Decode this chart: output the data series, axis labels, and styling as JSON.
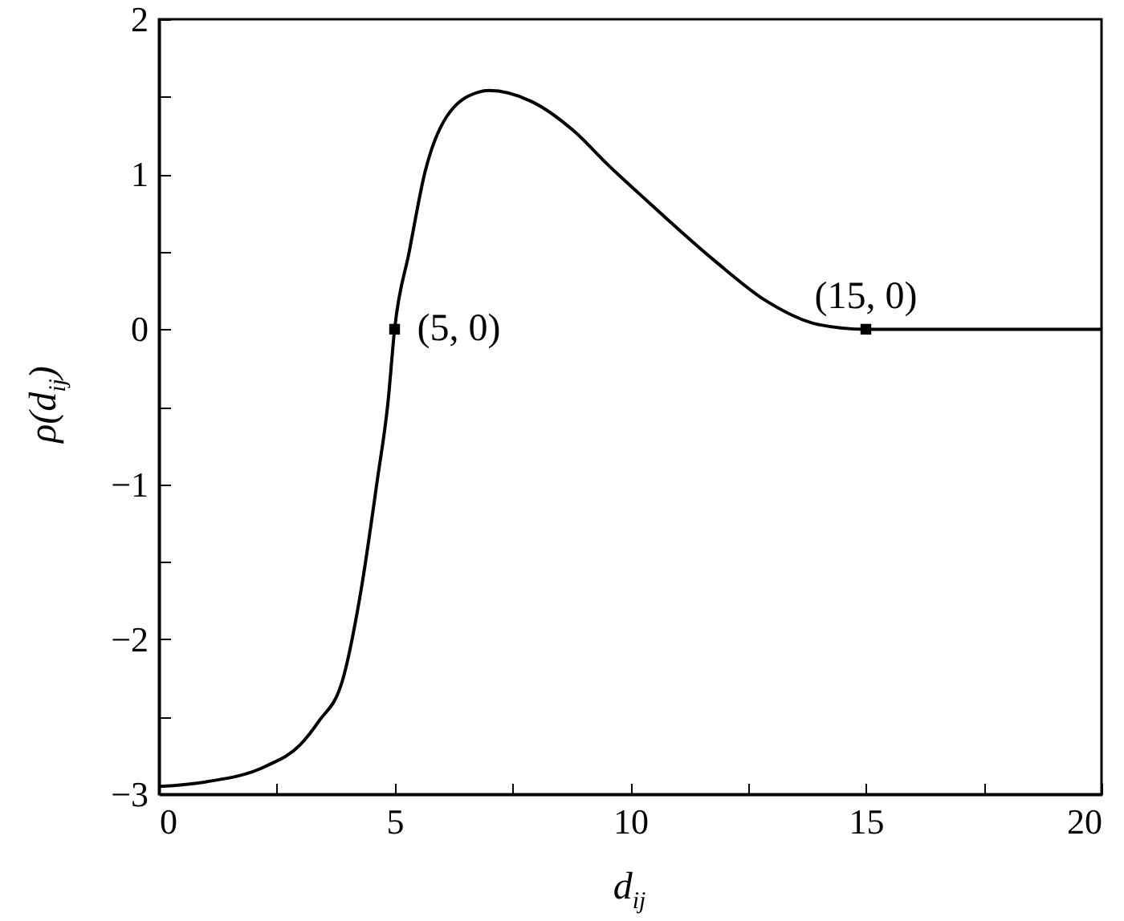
{
  "chart_data": {
    "type": "line",
    "xlabel": "d$_{ij}$",
    "ylabel": "ρ(d$_{ij}$)",
    "xlim": [
      0,
      20
    ],
    "xticks": [
      0,
      {
        "value": 2.5,
        "label": null
      },
      5,
      {
        "value": 7.5,
        "label": null
      },
      10,
      {
        "value": 12.5,
        "label": null
      },
      15,
      {
        "value": 17.5,
        "label": null
      },
      20
    ],
    "ylim": [
      -3,
      2
    ],
    "yticks": [
      {
        "value": -3,
        "label": "−3"
      },
      {
        "value": -2.5,
        "label": null
      },
      {
        "value": -2,
        "label": "−2"
      },
      {
        "value": -1.5,
        "label": null
      },
      {
        "value": -1,
        "label": "−1"
      },
      {
        "value": -0.5,
        "label": null
      },
      0,
      {
        "value": 0.5,
        "label": null
      },
      1,
      {
        "value": 1.5,
        "label": null
      },
      2
    ],
    "series": [
      {
        "color": "#000000",
        "x": [
          0,
          1,
          2.26,
          3,
          3.39,
          3.9,
          4.29,
          4.63,
          4.86,
          5,
          5.31,
          5.65,
          6.1,
          6.78,
          7,
          7.9,
          8.8,
          9.53,
          10.17,
          10.64,
          11.8,
          12.9,
          14,
          15,
          20
        ],
        "values": [
          -2.95,
          -2.92,
          -2.82,
          -2.68,
          -2.53,
          -2.26,
          -1.68,
          -0.98,
          -0.47,
          0,
          0.5,
          1.02,
          1.37,
          1.53,
          1.54,
          1.47,
          1.28,
          1.06,
          0.88,
          0.75,
          0.44,
          0.18,
          0.03,
          0,
          0
        ]
      },
      {
        "type": "scatter",
        "color": "#000000",
        "marker": "square",
        "x": [
          5,
          15
        ],
        "values": [
          0,
          0
        ]
      }
    ],
    "annotations": [
      {
        "text": "(5, 0)",
        "x": 5,
        "y": 0
      },
      {
        "text": "(15, 0)",
        "x": 15,
        "y": 0
      }
    ],
    "grid": false
  }
}
